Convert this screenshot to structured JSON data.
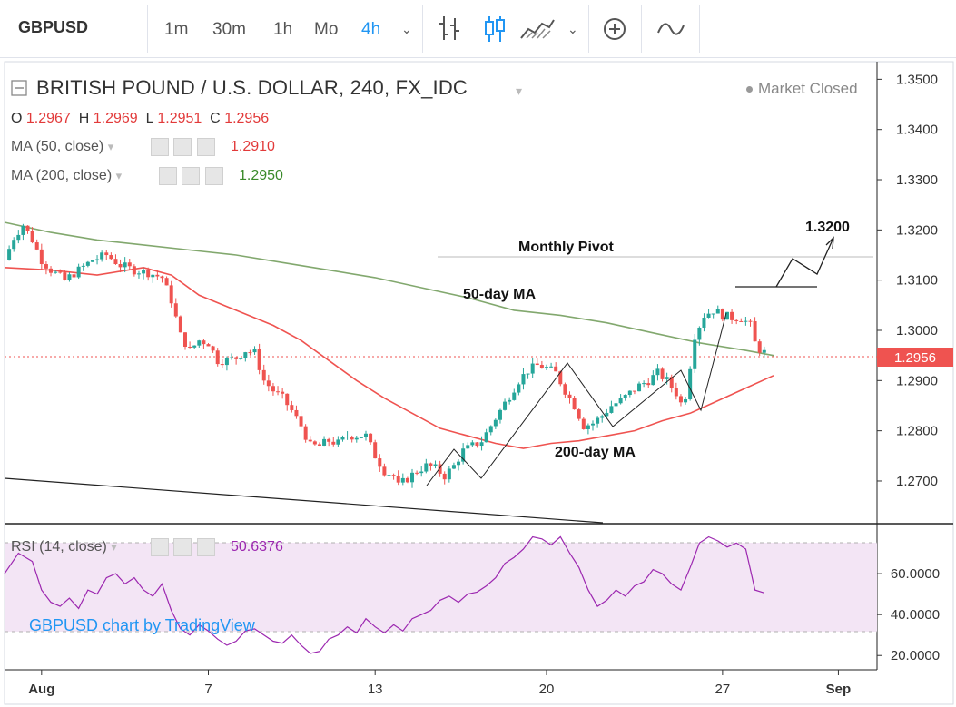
{
  "toolbar": {
    "symbol": "GBPUSD",
    "intervals": [
      "1m",
      "30m",
      "1h",
      "Mo",
      "4h"
    ],
    "active_interval": "4h",
    "icons": [
      "chevron-down-icon",
      "bar-style-icon",
      "candles-icon",
      "area-icon",
      "chevron-down-icon",
      "add-compare-icon",
      "indicators-icon"
    ]
  },
  "legend": {
    "title": "BRITISH POUND / U.S. DOLLAR, 240, FX_IDC",
    "o_label": "O",
    "o": "1.2967",
    "h_label": "H",
    "h": "1.2969",
    "l_label": "L",
    "l": "1.2951",
    "c_label": "C",
    "c": "1.2956",
    "ma50_label": "MA (50, close)",
    "ma50_value": "1.2910",
    "ma200_label": "MA (200, close)",
    "ma200_value": "1.2950",
    "market_status": "Market Closed"
  },
  "rsi": {
    "label": "RSI (14, close)",
    "value": "50.6376"
  },
  "watermark": "GBPUSD chart by TradingView",
  "annotations": {
    "monthly_pivot": "Monthly Pivot",
    "target": "1.3200",
    "ma50_note": "50-day MA",
    "ma200_note": "200-day MA"
  },
  "colors": {
    "up": "#26a69a",
    "down": "#ef5350",
    "ma50": "#ef5350",
    "ma200": "#82a86e",
    "rsi": "#9c27b0",
    "rsi_band": "#f3e5f5",
    "active": "#2196f3"
  },
  "chart_data": {
    "type": "candlestick",
    "symbol": "GBPUSD",
    "interval": "240",
    "y_ticks": [
      "1.3500",
      "1.3400",
      "1.3300",
      "1.3200",
      "1.3100",
      "1.3000",
      "1.2900",
      "1.2800",
      "1.2700"
    ],
    "ylim": [
      1.2615,
      1.3535
    ],
    "last_price": "1.2956",
    "x_ticks": [
      "Aug",
      "7",
      "13",
      "20",
      "27",
      "Sep"
    ],
    "rsi_ticks": [
      "60.0000",
      "40.0000",
      "20.0000"
    ],
    "rsi_ylim": [
      13,
      84
    ],
    "rsi_bands": [
      30,
      70
    ],
    "price_path": [
      [
        0,
        1.314
      ],
      [
        2,
        1.3185
      ],
      [
        4,
        1.321
      ],
      [
        6,
        1.318
      ],
      [
        8,
        1.314
      ],
      [
        10,
        1.312
      ],
      [
        13,
        1.31
      ],
      [
        16,
        1.312
      ],
      [
        19,
        1.314
      ],
      [
        22,
        1.315
      ],
      [
        25,
        1.313
      ],
      [
        28,
        1.312
      ],
      [
        31,
        1.3115
      ],
      [
        34,
        1.3105
      ],
      [
        36,
        1.306
      ],
      [
        38,
        1.299
      ],
      [
        40,
        1.296
      ],
      [
        42,
        1.298
      ],
      [
        44,
        1.2975
      ],
      [
        46,
        1.294
      ],
      [
        48,
        1.294
      ],
      [
        50,
        1.2945
      ],
      [
        52,
        1.296
      ],
      [
        54,
        1.2955
      ],
      [
        56,
        1.29
      ],
      [
        58,
        1.288
      ],
      [
        60,
        1.2865
      ],
      [
        62,
        1.284
      ],
      [
        64,
        1.281
      ],
      [
        66,
        1.277
      ],
      [
        68,
        1.277
      ],
      [
        70,
        1.278
      ],
      [
        72,
        1.2775
      ],
      [
        74,
        1.279
      ],
      [
        76,
        1.279
      ],
      [
        78,
        1.279
      ],
      [
        80,
        1.275
      ],
      [
        82,
        1.272
      ],
      [
        84,
        1.271
      ],
      [
        85,
        1.269
      ],
      [
        87,
        1.2705
      ],
      [
        89,
        1.272
      ],
      [
        91,
        1.273
      ],
      [
        93,
        1.2725
      ],
      [
        95,
        1.271
      ],
      [
        97,
        1.273
      ],
      [
        99,
        1.276
      ],
      [
        101,
        1.277
      ],
      [
        103,
        1.278
      ],
      [
        105,
        1.281
      ],
      [
        107,
        1.284
      ],
      [
        109,
        1.287
      ],
      [
        111,
        1.29
      ],
      [
        113,
        1.292
      ],
      [
        115,
        1.293
      ],
      [
        117,
        1.2925
      ],
      [
        119,
        1.2915
      ],
      [
        121,
        1.288
      ],
      [
        123,
        1.285
      ],
      [
        125,
        1.281
      ],
      [
        127,
        1.2815
      ],
      [
        129,
        1.283
      ],
      [
        131,
        1.285
      ],
      [
        133,
        1.286
      ],
      [
        135,
        1.2875
      ],
      [
        137,
        1.289
      ],
      [
        139,
        1.29
      ],
      [
        141,
        1.2915
      ],
      [
        143,
        1.29
      ],
      [
        145,
        1.2875
      ],
      [
        146,
        1.2855
      ],
      [
        147,
        1.287
      ],
      [
        148,
        1.293
      ],
      [
        149,
        1.299
      ],
      [
        151,
        1.303
      ],
      [
        153,
        1.304
      ],
      [
        155,
        1.303
      ],
      [
        157,
        1.3025
      ],
      [
        159,
        1.3025
      ],
      [
        161,
        1.301
      ],
      [
        162,
        1.2975
      ],
      [
        163,
        1.2962
      ],
      [
        164,
        1.2956
      ]
    ],
    "ma50": [
      [
        0,
        1.3125
      ],
      [
        10,
        1.312
      ],
      [
        20,
        1.311
      ],
      [
        30,
        1.3125
      ],
      [
        36,
        1.311
      ],
      [
        42,
        1.307
      ],
      [
        50,
        1.304
      ],
      [
        58,
        1.301
      ],
      [
        64,
        1.298
      ],
      [
        70,
        1.294
      ],
      [
        76,
        1.29
      ],
      [
        82,
        1.2865
      ],
      [
        88,
        1.2835
      ],
      [
        94,
        1.2805
      ],
      [
        100,
        1.279
      ],
      [
        106,
        1.2775
      ],
      [
        112,
        1.2765
      ],
      [
        118,
        1.2775
      ],
      [
        124,
        1.278
      ],
      [
        130,
        1.279
      ],
      [
        136,
        1.28
      ],
      [
        142,
        1.282
      ],
      [
        148,
        1.2835
      ],
      [
        154,
        1.286
      ],
      [
        160,
        1.2885
      ],
      [
        166,
        1.291
      ]
    ],
    "ma200": [
      [
        0,
        1.3215
      ],
      [
        10,
        1.3195
      ],
      [
        20,
        1.318
      ],
      [
        30,
        1.317
      ],
      [
        40,
        1.316
      ],
      [
        50,
        1.315
      ],
      [
        60,
        1.3135
      ],
      [
        70,
        1.312
      ],
      [
        80,
        1.3105
      ],
      [
        90,
        1.3085
      ],
      [
        100,
        1.3065
      ],
      [
        110,
        1.304
      ],
      [
        120,
        1.303
      ],
      [
        130,
        1.3015
      ],
      [
        140,
        1.2995
      ],
      [
        150,
        1.2975
      ],
      [
        160,
        1.296
      ],
      [
        166,
        1.295
      ]
    ],
    "rsi_values": [
      [
        0,
        60
      ],
      [
        3,
        70
      ],
      [
        6,
        66
      ],
      [
        8,
        52
      ],
      [
        10,
        46
      ],
      [
        12,
        44
      ],
      [
        14,
        48
      ],
      [
        16,
        43
      ],
      [
        18,
        52
      ],
      [
        20,
        50
      ],
      [
        22,
        58
      ],
      [
        24,
        60
      ],
      [
        26,
        55
      ],
      [
        28,
        58
      ],
      [
        30,
        52
      ],
      [
        32,
        49
      ],
      [
        34,
        55
      ],
      [
        36,
        42
      ],
      [
        38,
        33
      ],
      [
        40,
        30
      ],
      [
        42,
        35
      ],
      [
        44,
        32
      ],
      [
        46,
        28
      ],
      [
        48,
        25
      ],
      [
        50,
        27
      ],
      [
        52,
        32
      ],
      [
        54,
        33
      ],
      [
        56,
        30
      ],
      [
        58,
        27
      ],
      [
        60,
        26
      ],
      [
        62,
        30
      ],
      [
        64,
        25
      ],
      [
        66,
        21
      ],
      [
        68,
        22
      ],
      [
        70,
        28
      ],
      [
        72,
        30
      ],
      [
        74,
        34
      ],
      [
        76,
        31
      ],
      [
        78,
        38
      ],
      [
        80,
        34
      ],
      [
        82,
        31
      ],
      [
        84,
        35
      ],
      [
        86,
        32
      ],
      [
        88,
        38
      ],
      [
        90,
        40
      ],
      [
        92,
        42
      ],
      [
        94,
        47
      ],
      [
        96,
        49
      ],
      [
        98,
        46
      ],
      [
        100,
        50
      ],
      [
        102,
        51
      ],
      [
        104,
        54
      ],
      [
        106,
        58
      ],
      [
        108,
        65
      ],
      [
        110,
        68
      ],
      [
        112,
        72
      ],
      [
        114,
        78
      ],
      [
        116,
        77
      ],
      [
        118,
        74
      ],
      [
        120,
        78
      ],
      [
        122,
        70
      ],
      [
        124,
        63
      ],
      [
        126,
        52
      ],
      [
        128,
        44
      ],
      [
        130,
        47
      ],
      [
        132,
        52
      ],
      [
        134,
        49
      ],
      [
        136,
        54
      ],
      [
        138,
        56
      ],
      [
        140,
        62
      ],
      [
        142,
        60
      ],
      [
        144,
        55
      ],
      [
        146,
        52
      ],
      [
        148,
        63
      ],
      [
        150,
        75
      ],
      [
        152,
        78
      ],
      [
        154,
        76
      ],
      [
        156,
        73
      ],
      [
        158,
        75
      ],
      [
        160,
        72
      ],
      [
        162,
        52
      ],
      [
        164,
        50.6
      ]
    ]
  }
}
